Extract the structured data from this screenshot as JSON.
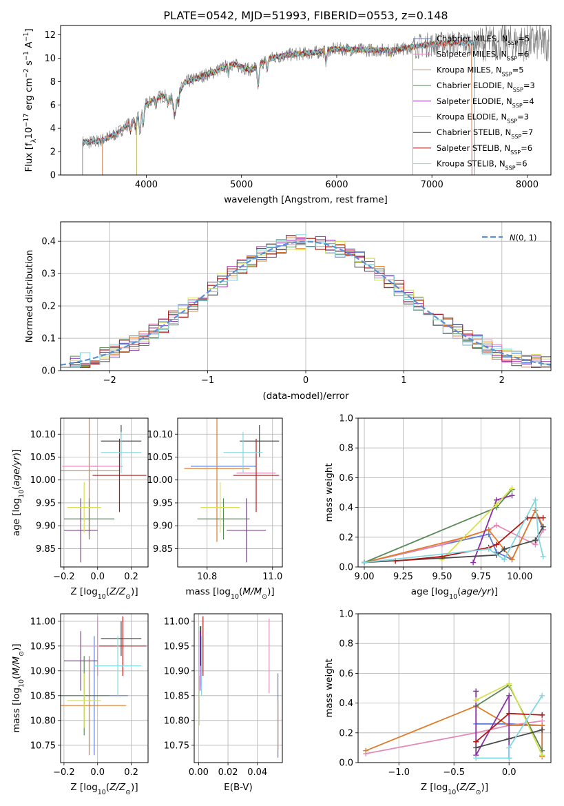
{
  "series_colors": {
    "Chabrier MILES": "#5b7bd6",
    "Salpeter MILES": "#e38ab8",
    "Kroupa MILES": "#e07b28",
    "Chabrier ELODIE": "#5a8a5a",
    "Salpeter ELODIE": "#8b2fa8",
    "Kroupa ELODIE": "#d8e050",
    "Chabrier STELIB": "#4a4a4a",
    "Salpeter STELIB": "#b01818",
    "Kroupa STELIB": "#80d8e0"
  },
  "chart_data": [
    {
      "id": "spectrum",
      "type": "line",
      "title": "PLATE=0542, MJD=51993, FIBERID=0553, z=0.148",
      "xlabel": "wavelength [Angstrom, rest frame]",
      "ylabel": "Flux [f_λ10^-17 erg cm^-2 s^-1 A^-1]",
      "xlim": [
        3100,
        8250
      ],
      "ylim": [
        0,
        12.8
      ],
      "xticks": [
        "4000",
        "5000",
        "6000",
        "7000",
        "8000"
      ],
      "yticks": [
        "0",
        "2",
        "4",
        "6",
        "8",
        "10",
        "12"
      ],
      "grid": false,
      "legend_position": "top-right",
      "legend": [
        {
          "label": "Chabrier MILES, N_SSP=5",
          "series": "Chabrier MILES"
        },
        {
          "label": "Salpeter MILES, N_SSP=6",
          "series": "Salpeter MILES"
        },
        {
          "label": "Kroupa MILES, N_SSP=5",
          "series": "Kroupa MILES"
        },
        {
          "label": "Chabrier ELODIE, N_SSP=3",
          "series": "Chabrier ELODIE"
        },
        {
          "label": "Salpeter ELODIE, N_SSP=4",
          "series": "Salpeter ELODIE"
        },
        {
          "label": "Kroupa ELODIE, N_SSP=3",
          "series": "Kroupa ELODIE"
        },
        {
          "label": "Chabrier STELIB, N_SSP=7",
          "series": "Chabrier STELIB"
        },
        {
          "label": "Salpeter STELIB, N_SSP=6",
          "series": "Salpeter STELIB"
        },
        {
          "label": "Kroupa STELIB, N_SSP=6",
          "series": "Kroupa STELIB"
        }
      ],
      "data_color": "#808080",
      "continuum": {
        "x": [
          3330,
          3400,
          3500,
          3600,
          3700,
          3800,
          3900,
          4000,
          4100,
          4200,
          4300,
          4400,
          4500,
          4700,
          4900,
          5100,
          5300,
          5500,
          5800,
          6000,
          6300,
          6600,
          6900,
          7200,
          7450
        ],
        "y": [
          2.8,
          2.8,
          2.9,
          3.2,
          3.6,
          4.3,
          4.8,
          6.0,
          6.6,
          6.8,
          6.3,
          7.9,
          8.2,
          8.8,
          9.5,
          9.0,
          10.0,
          10.3,
          10.5,
          10.8,
          10.7,
          10.7,
          11.1,
          11.3,
          11.3
        ]
      },
      "model_ranges": [
        {
          "series": "Chabrier MILES",
          "x_start": 3540,
          "x_end": 7420
        },
        {
          "series": "Salpeter MILES",
          "x_start": 3540,
          "x_end": 7420
        },
        {
          "series": "Kroupa MILES",
          "x_start": 3540,
          "x_end": 7420
        },
        {
          "series": "Chabrier ELODIE",
          "x_start": 3900,
          "x_end": 6800
        },
        {
          "series": "Salpeter ELODIE",
          "x_start": 3900,
          "x_end": 6800
        },
        {
          "series": "Kroupa ELODIE",
          "x_start": 3900,
          "x_end": 6800
        },
        {
          "series": "Chabrier STELIB",
          "x_start": 3330,
          "x_end": 7450
        },
        {
          "series": "Salpeter STELIB",
          "x_start": 3330,
          "x_end": 7450
        },
        {
          "series": "Kroupa STELIB",
          "x_start": 3330,
          "x_end": 7450
        }
      ]
    },
    {
      "id": "residuals",
      "type": "line",
      "xlabel": "(data-model)/error",
      "ylabel": "Normed distribution",
      "xlim": [
        -2.5,
        2.5
      ],
      "ylim": [
        0,
        0.46
      ],
      "xticks": [
        "−2",
        "−1",
        "0",
        "1",
        "2"
      ],
      "yticks": [
        "0.0",
        "0.1",
        "0.2",
        "0.3",
        "0.4"
      ],
      "grid": true,
      "legend_position": "top-right",
      "legend": [
        {
          "label": "N(0,1)",
          "color": "#5b8fd6",
          "style": "dashed"
        }
      ],
      "histogram_bins": 50
    },
    {
      "id": "age-vs-Z",
      "type": "scatter",
      "xlabel": "Z [log10(Z/Z⊙)]",
      "ylabel": "age [log10(age/yr)]",
      "xlim": [
        -0.22,
        0.3
      ],
      "ylim": [
        9.81,
        10.135
      ],
      "xticks": [
        "−0.2",
        "0.0",
        "0.2"
      ],
      "yticks": [
        "9.85",
        "9.90",
        "9.95",
        "10.00",
        "10.05",
        "10.10"
      ],
      "grid": true,
      "points": [
        {
          "series": "Chabrier MILES",
          "x": -0.02,
          "xerr": 0.02,
          "y": 10.03,
          "yerr": 0.0
        },
        {
          "series": "Salpeter MILES",
          "x": -0.03,
          "xerr": 0.18,
          "y": 10.03,
          "yerr": 0.0
        },
        {
          "series": "Kroupa MILES",
          "x": -0.05,
          "xerr": 0.18,
          "y": 10.02,
          "yerr": 0.14
        },
        {
          "series": "Chabrier ELODIE",
          "x": -0.05,
          "xerr": 0.15,
          "y": 9.915,
          "yerr": 0.045
        },
        {
          "series": "Salpeter ELODIE",
          "x": -0.1,
          "xerr": 0.1,
          "y": 9.89,
          "yerr": 0.07
        },
        {
          "series": "Kroupa ELODIE",
          "x": -0.08,
          "xerr": 0.1,
          "y": 9.94,
          "yerr": 0.055
        },
        {
          "series": "Chabrier STELIB",
          "x": 0.14,
          "xerr": 0.12,
          "y": 10.085,
          "yerr": 0.035
        },
        {
          "series": "Salpeter STELIB",
          "x": 0.13,
          "xerr": 0.16,
          "y": 10.01,
          "yerr": 0.08
        },
        {
          "series": "Kroupa STELIB",
          "x": 0.14,
          "xerr": 0.12,
          "y": 10.06,
          "yerr": 0.045
        }
      ]
    },
    {
      "id": "age-vs-mass",
      "type": "scatter",
      "xlabel": "mass [log10(M/M⊙)]",
      "ylabel": "",
      "xlim": [
        10.71,
        11.03
      ],
      "ylim": [
        9.81,
        10.135
      ],
      "xticks": [
        "10.8",
        "11.0"
      ],
      "yticks": [
        "9.85",
        "9.90",
        "9.95",
        "10.00",
        "10.05",
        "10.10"
      ],
      "grid": true,
      "points": [
        {
          "series": "Chabrier MILES",
          "x": 10.85,
          "xerr": 0.1,
          "y": 10.03,
          "yerr": 0.0
        },
        {
          "series": "Salpeter MILES",
          "x": 10.95,
          "xerr": 0.06,
          "y": 10.015,
          "yerr": 0.0
        },
        {
          "series": "Kroupa MILES",
          "x": 10.83,
          "xerr": 0.1,
          "y": 10.025,
          "yerr": 0.16
        },
        {
          "series": "Chabrier ELODIE",
          "x": 10.85,
          "xerr": 0.08,
          "y": 9.915,
          "yerr": 0.045
        },
        {
          "series": "Salpeter ELODIE",
          "x": 10.92,
          "xerr": 0.06,
          "y": 9.89,
          "yerr": 0.07
        },
        {
          "series": "Kroupa ELODIE",
          "x": 10.84,
          "xerr": 0.06,
          "y": 9.94,
          "yerr": 0.055
        },
        {
          "series": "Chabrier STELIB",
          "x": 10.96,
          "xerr": 0.06,
          "y": 10.085,
          "yerr": 0.035
        },
        {
          "series": "Salpeter STELIB",
          "x": 10.95,
          "xerr": 0.07,
          "y": 10.01,
          "yerr": 0.08
        },
        {
          "series": "Kroupa STELIB",
          "x": 10.91,
          "xerr": 0.06,
          "y": 10.06,
          "yerr": 0.045
        }
      ]
    },
    {
      "id": "weight-vs-age",
      "type": "line",
      "xlabel": "age [log10(age/yr)]",
      "ylabel": "mass weight",
      "xlim": [
        8.96,
        10.2
      ],
      "ylim": [
        0,
        1.0
      ],
      "xticks": [
        "9.00",
        "9.25",
        "9.50",
        "9.75",
        "10.00"
      ],
      "yticks": [
        "0.0",
        "0.2",
        "0.4",
        "0.6",
        "0.8",
        "1.0"
      ],
      "grid": true,
      "series": [
        {
          "name": "Chabrier MILES",
          "x": [
            9.0,
            9.8,
            9.85,
            9.95,
            10.1,
            10.15
          ],
          "y": [
            0.03,
            0.22,
            0.1,
            0.05,
            0.38,
            0.25
          ]
        },
        {
          "name": "Salpeter MILES",
          "x": [
            9.0,
            9.5,
            9.8,
            9.85,
            10.1,
            10.15
          ],
          "y": [
            0.03,
            0.15,
            0.25,
            0.28,
            0.15,
            0.25
          ]
        },
        {
          "name": "Kroupa MILES",
          "x": [
            9.0,
            9.65,
            9.8,
            9.95,
            10.1,
            10.15
          ],
          "y": [
            0.03,
            0.2,
            0.25,
            0.05,
            0.38,
            0.27
          ]
        },
        {
          "name": "Chabrier ELODIE",
          "x": [
            9.0,
            9.85,
            9.95
          ],
          "y": [
            0.03,
            0.4,
            0.52
          ]
        },
        {
          "name": "Salpeter ELODIE",
          "x": [
            9.7,
            9.85,
            9.95
          ],
          "y": [
            0.03,
            0.45,
            0.48
          ]
        },
        {
          "name": "Kroupa ELODIE",
          "x": [
            9.5,
            9.85,
            9.95
          ],
          "y": [
            0.05,
            0.42,
            0.53
          ]
        },
        {
          "name": "Chabrier STELIB",
          "x": [
            9.0,
            9.85,
            9.9,
            10.1,
            10.15
          ],
          "y": [
            0.03,
            0.08,
            0.12,
            0.18,
            0.27
          ]
        },
        {
          "name": "Salpeter STELIB",
          "x": [
            9.2,
            9.5,
            9.8,
            9.85,
            10.05,
            10.15
          ],
          "y": [
            0.04,
            0.07,
            0.13,
            0.15,
            0.33,
            0.33
          ]
        },
        {
          "name": "Kroupa STELIB",
          "x": [
            9.0,
            9.8,
            9.9,
            10.1,
            10.12,
            10.15
          ],
          "y": [
            0.03,
            0.12,
            0.05,
            0.45,
            0.2,
            0.07
          ]
        }
      ]
    },
    {
      "id": "mass-vs-Z",
      "type": "scatter",
      "xlabel": "Z [log10(Z/Z⊙)]",
      "ylabel": "mass [log10(M/M⊙)]",
      "xlim": [
        -0.22,
        0.3
      ],
      "ylim": [
        10.715,
        11.015
      ],
      "xticks": [
        "−0.2",
        "0.0",
        "0.2"
      ],
      "yticks": [
        "10.75",
        "10.80",
        "10.85",
        "10.90",
        "10.95",
        "11.00"
      ],
      "grid": true,
      "points": [
        {
          "series": "Chabrier MILES",
          "x": -0.02,
          "xerr": 0.2,
          "y": 10.85,
          "yerr": 0.12
        },
        {
          "series": "Salpeter MILES",
          "x": 0.0,
          "xerr": 0.1,
          "y": 10.95,
          "yerr": 0.06
        },
        {
          "series": "Kroupa MILES",
          "x": -0.05,
          "xerr": 0.22,
          "y": 10.83,
          "yerr": 0.1
        },
        {
          "series": "Chabrier ELODIE",
          "x": -0.08,
          "xerr": 0.15,
          "y": 10.85,
          "yerr": 0.08
        },
        {
          "series": "Salpeter ELODIE",
          "x": -0.1,
          "xerr": 0.1,
          "y": 10.92,
          "yerr": 0.06
        },
        {
          "series": "Kroupa ELODIE",
          "x": -0.08,
          "xerr": 0.1,
          "y": 10.84,
          "yerr": 0.055
        },
        {
          "series": "Chabrier STELIB",
          "x": 0.14,
          "xerr": 0.12,
          "y": 10.965,
          "yerr": 0.035
        },
        {
          "series": "Salpeter STELIB",
          "x": 0.15,
          "xerr": 0.14,
          "y": 10.95,
          "yerr": 0.06
        },
        {
          "series": "Kroupa STELIB",
          "x": 0.12,
          "xerr": 0.14,
          "y": 10.91,
          "yerr": 0.06
        }
      ]
    },
    {
      "id": "mass-vs-EBV",
      "type": "scatter",
      "xlabel": "E(B-V)",
      "ylabel": "",
      "xlim": [
        -0.003,
        0.057
      ],
      "ylim": [
        10.715,
        11.015
      ],
      "xticks": [
        "0.00",
        "0.02",
        "0.04"
      ],
      "yticks": [
        "10.75",
        "10.80",
        "10.85",
        "10.90",
        "10.95",
        "11.00"
      ],
      "grid": true,
      "points": [
        {
          "series": "Chabrier MILES",
          "x": 0.054,
          "xerr": 0.0,
          "y": 10.81,
          "yerr": 0.085
        },
        {
          "series": "Salpeter MILES",
          "x": 0.048,
          "xerr": 0.0,
          "y": 10.93,
          "yerr": 0.075
        },
        {
          "series": "Kroupa MILES",
          "x": 0.054,
          "xerr": 0.0,
          "y": 10.79,
          "yerr": 0.05
        },
        {
          "series": "Chabrier ELODIE",
          "x": 0.001,
          "xerr": 0.0,
          "y": 10.93,
          "yerr": 0.06
        },
        {
          "series": "Salpeter ELODIE",
          "x": 0.001,
          "xerr": 0.0,
          "y": 10.92,
          "yerr": 0.06
        },
        {
          "series": "Kroupa ELODIE",
          "x": 0.0005,
          "xerr": 0.0,
          "y": 10.84,
          "yerr": 0.05
        },
        {
          "series": "Chabrier STELIB",
          "x": 0.0015,
          "xerr": 0.0,
          "y": 10.95,
          "yerr": 0.04
        },
        {
          "series": "Salpeter STELIB",
          "x": 0.003,
          "xerr": 0.0,
          "y": 10.95,
          "yerr": 0.06
        },
        {
          "series": "Kroupa STELIB",
          "x": 0.002,
          "xerr": 0.0,
          "y": 10.91,
          "yerr": 0.06
        }
      ]
    },
    {
      "id": "weight-vs-Z",
      "type": "line",
      "xlabel": "Z [log10(Z/Z⊙)]",
      "ylabel": "mass weight",
      "xlim": [
        -1.37,
        0.38
      ],
      "ylim": [
        0,
        1.0
      ],
      "xticks": [
        "−1.0",
        "−0.5",
        "0.0"
      ],
      "yticks": [
        "0.0",
        "0.2",
        "0.4",
        "0.6",
        "0.8",
        "1.0"
      ],
      "grid": true,
      "series": [
        {
          "name": "Chabrier MILES",
          "x": [
            -0.3,
            0.0,
            0.3,
            0.3
          ],
          "y": [
            0.26,
            0.26,
            0.25,
            0.05
          ]
        },
        {
          "name": "Salpeter MILES",
          "x": [
            -1.3,
            -0.3,
            0.0,
            0.3
          ],
          "y": [
            0.06,
            0.2,
            0.25,
            0.28
          ]
        },
        {
          "name": "Kroupa MILES",
          "x": [
            -1.3,
            -0.3,
            0.0,
            0.3,
            0.3
          ],
          "y": [
            0.08,
            0.38,
            0.25,
            0.25,
            0.04
          ]
        },
        {
          "name": "Chabrier ELODIE",
          "x": [
            -0.3,
            0.0,
            0.3
          ],
          "y": [
            0.38,
            0.52,
            0.08
          ]
        },
        {
          "name": "Salpeter ELODIE",
          "x": [
            -0.3,
            -0.3,
            0.0,
            0.0
          ],
          "y": [
            0.48,
            0.05,
            0.45,
            0.03
          ]
        },
        {
          "name": "Kroupa ELODIE",
          "x": [
            -0.3,
            0.0,
            0.3
          ],
          "y": [
            0.42,
            0.53,
            0.05
          ]
        },
        {
          "name": "Chabrier STELIB",
          "x": [
            -0.3,
            0.0,
            0.3
          ],
          "y": [
            0.1,
            0.16,
            0.22
          ]
        },
        {
          "name": "Salpeter STELIB",
          "x": [
            -0.3,
            0.0,
            0.3
          ],
          "y": [
            0.14,
            0.33,
            0.32
          ]
        },
        {
          "name": "Kroupa STELIB",
          "x": [
            -0.3,
            0.0,
            0.0,
            0.3
          ],
          "y": [
            0.03,
            0.03,
            0.1,
            0.45
          ]
        }
      ]
    }
  ]
}
